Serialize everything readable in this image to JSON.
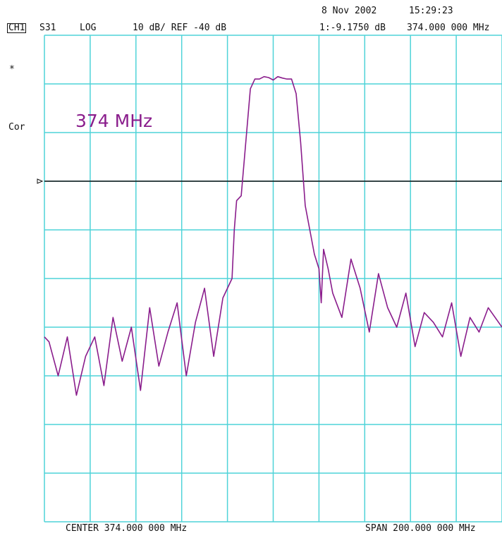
{
  "header": {
    "date": "8 Nov 2002",
    "time": "15:29:23",
    "channel": "CH1",
    "parameter": "S31",
    "format": "LOG",
    "scale_ref": "10 dB/ REF -40 dB",
    "marker_value": "1:-9.1750 dB",
    "marker_freq": "374.000 000 MHz"
  },
  "side": {
    "star": "*",
    "cor": "Cor"
  },
  "annotation": "374 MHz",
  "footer": {
    "center": "CENTER 374.000 000 MHz",
    "span": "SPAN 200.000 000 MHz"
  },
  "marker": {
    "label": "1",
    "freq_mhz": 374,
    "level_db": -9.175
  },
  "colors": {
    "grid": "#4fd3d8",
    "trace": "#8a1d8c",
    "ref_line": "#111111"
  },
  "chart_data": {
    "type": "line",
    "xlabel": "",
    "ylabel": "",
    "xlim": [
      274,
      474
    ],
    "ylim": [
      -140,
      -40
    ],
    "grid": true,
    "reference_level_db": -40,
    "reference_line_db": -70,
    "series": [
      {
        "x": [
          274,
          276,
          280,
          284,
          288,
          292,
          296,
          300,
          304,
          308,
          312,
          316,
          320,
          324,
          328,
          332,
          336,
          340,
          344,
          348,
          352,
          356,
          357,
          358,
          360,
          362,
          364,
          366,
          368,
          370,
          372,
          374,
          376,
          378,
          380,
          382,
          384,
          386,
          388,
          390,
          392,
          394,
          395,
          396,
          398,
          400,
          404,
          408,
          412,
          416,
          420,
          424,
          428,
          432,
          436,
          440,
          444,
          448,
          452,
          456,
          460,
          464,
          468,
          474
        ],
        "y": [
          -102,
          -103,
          -110,
          -102,
          -114,
          -106,
          -102,
          -112,
          -98,
          -107,
          -100,
          -113,
          -96,
          -108,
          -101,
          -95,
          -110,
          -99,
          -92,
          -106,
          -94,
          -90,
          -80,
          -74,
          -73,
          -62,
          -51,
          -49,
          -49,
          -48.5,
          -48.7,
          -49.2,
          -48.5,
          -48.8,
          -49,
          -49,
          -52,
          -62,
          -75,
          -80,
          -85,
          -88,
          -95,
          -84,
          -88,
          -93,
          -98,
          -86,
          -92,
          -101,
          -89,
          -96,
          -100,
          -93,
          -104,
          -97,
          -99,
          -102,
          -95,
          -106,
          -98,
          -101,
          -96,
          -100
        ]
      }
    ]
  }
}
